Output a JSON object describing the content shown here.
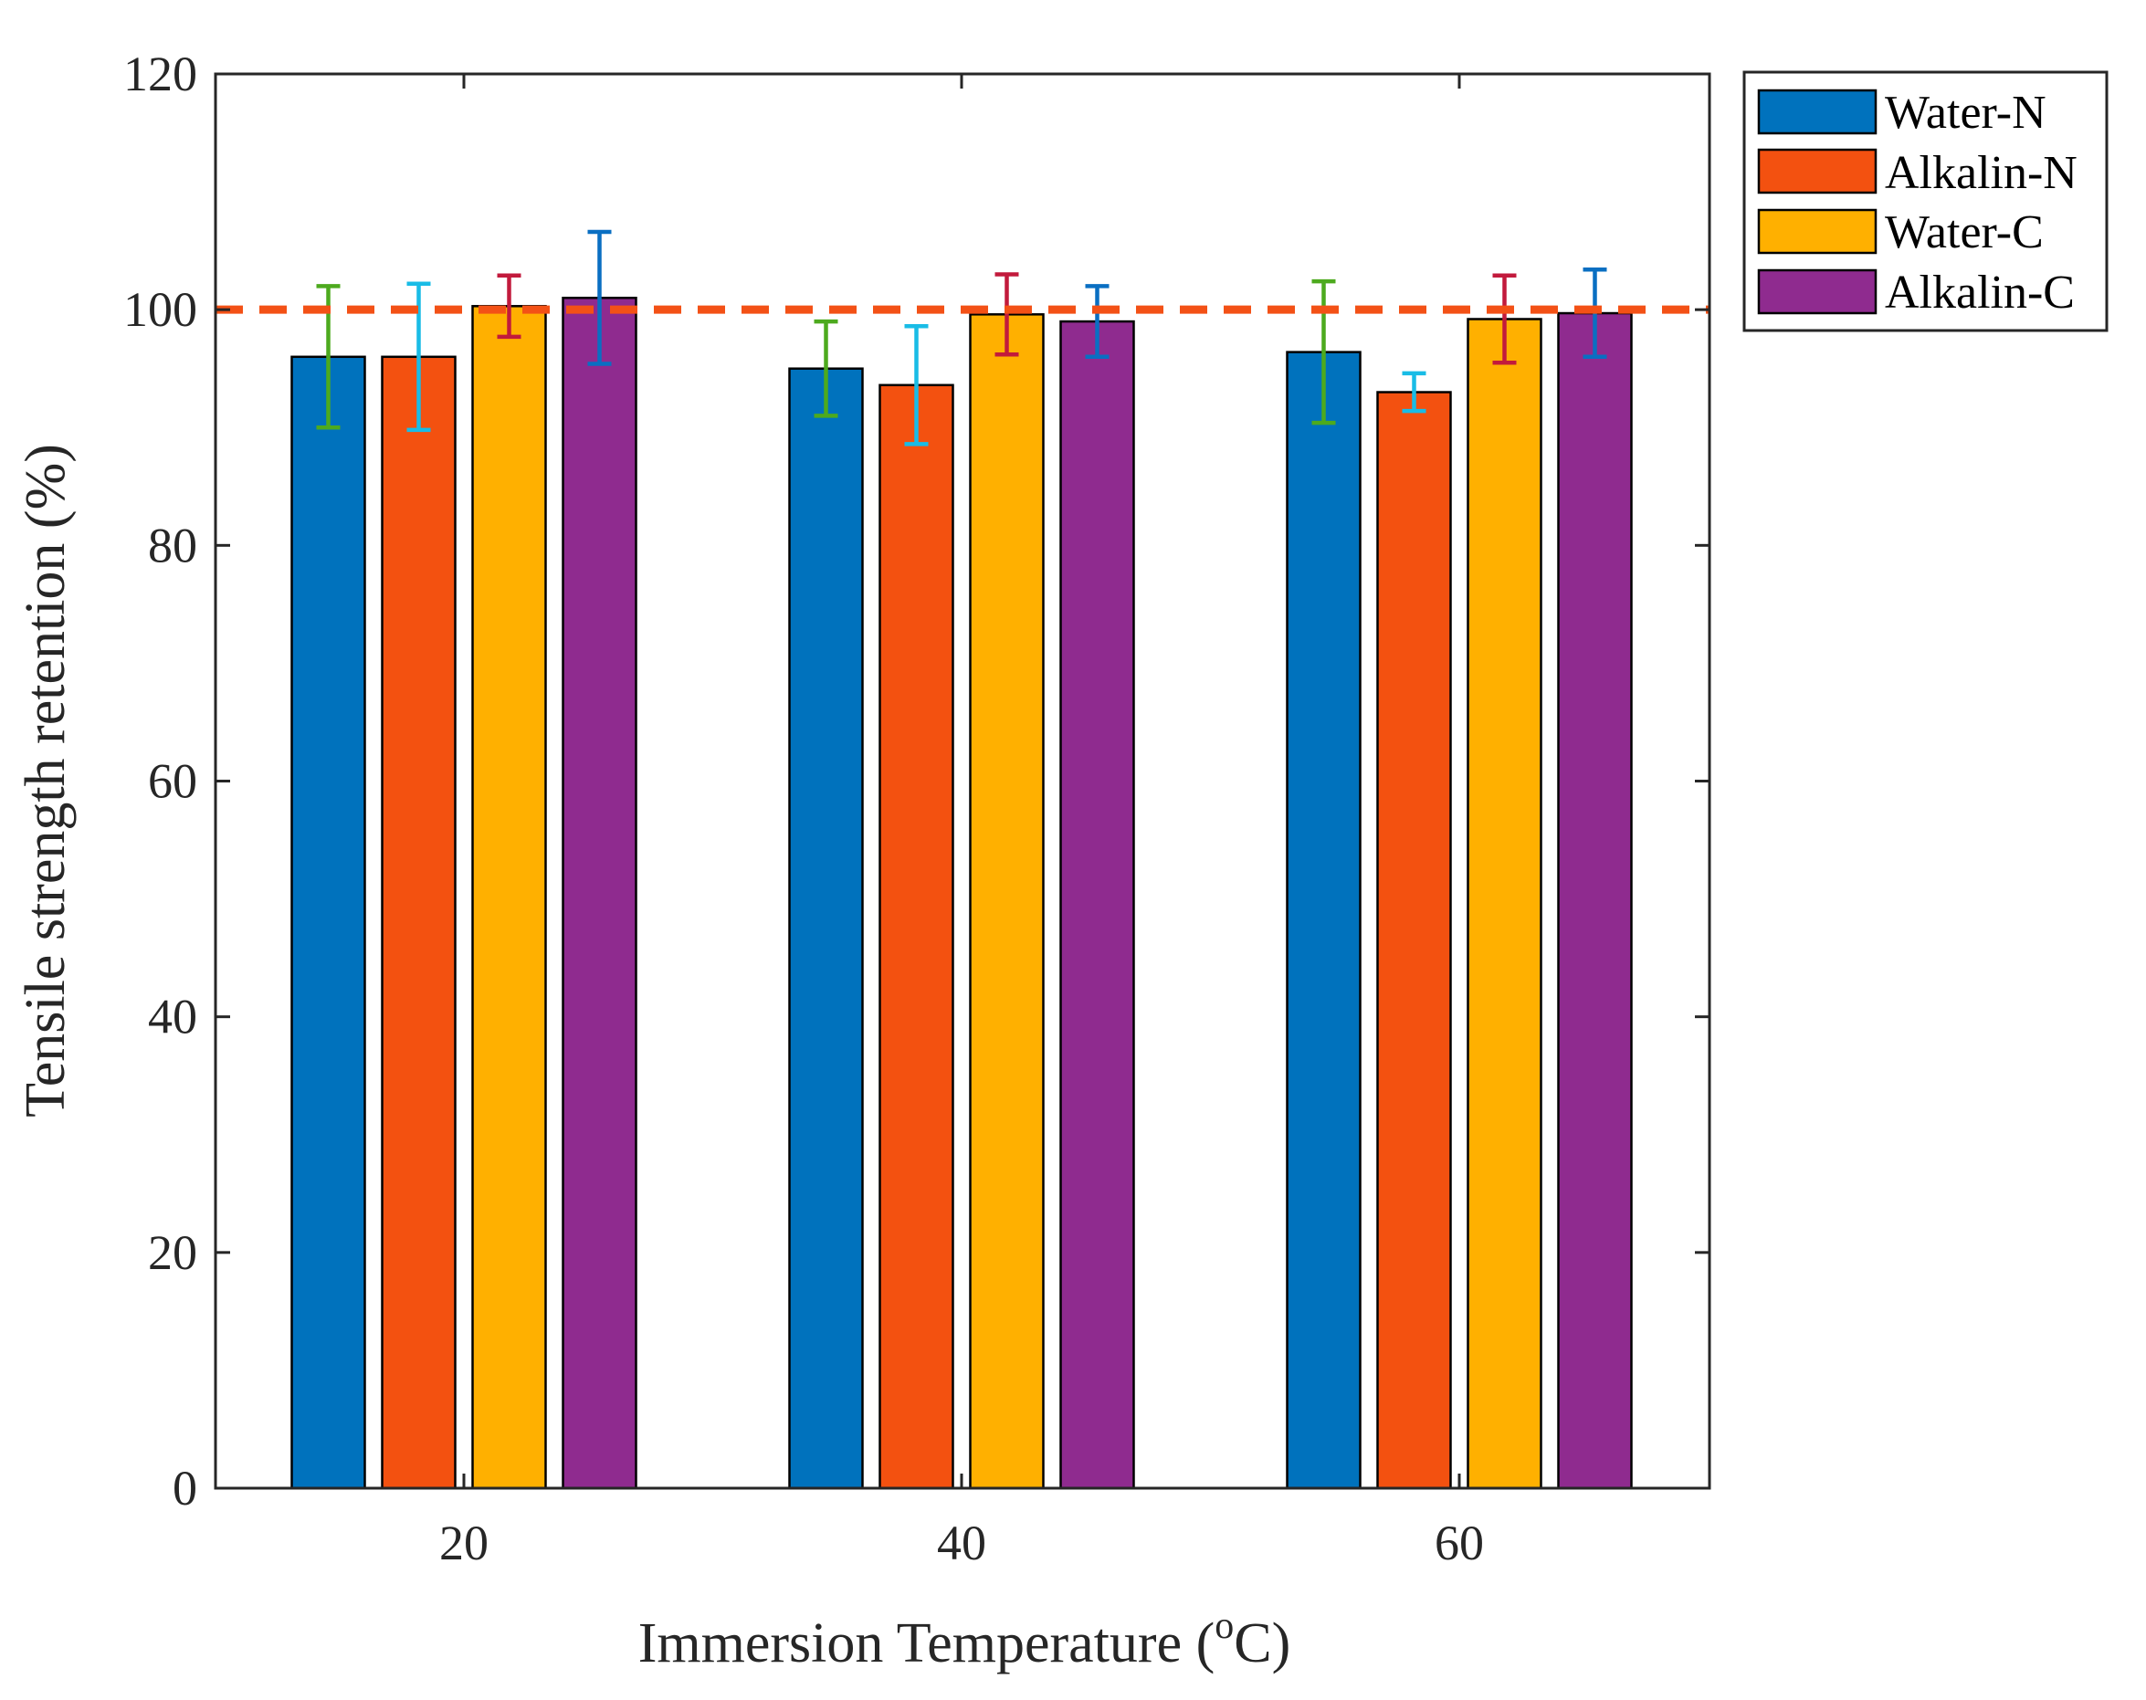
{
  "chart_data": {
    "type": "bar",
    "title": "",
    "xlabel_main": "Immersion Temperature (",
    "xlabel_superscript": "o",
    "xlabel_tail": "C)",
    "ylabel": "Tensile strength retention (%)",
    "categories": [
      "20",
      "40",
      "60"
    ],
    "ylim": [
      0,
      120
    ],
    "yticks": [
      "0",
      "20",
      "40",
      "60",
      "80",
      "100",
      "120"
    ],
    "reference_line": {
      "value": 100,
      "color": "#F35116",
      "style": "dashed"
    },
    "legend_position": "outside-top-right",
    "series": [
      {
        "name": "Water-N",
        "color": "#0072BD",
        "error_color": "#4DAA1E",
        "values": [
          96.0,
          95.0,
          96.4
        ],
        "errors": [
          6.0,
          4.0,
          6.0
        ]
      },
      {
        "name": "Alkalin-N",
        "color": "#F35110",
        "error_color": "#19BCE6",
        "values": [
          96.0,
          93.6,
          93.0
        ],
        "errors": [
          6.2,
          5.0,
          1.6
        ]
      },
      {
        "name": "Water-C",
        "color": "#FFB000",
        "error_color": "#C21A3C",
        "values": [
          100.3,
          99.6,
          99.2
        ],
        "errors": [
          2.6,
          3.4,
          3.7
        ]
      },
      {
        "name": "Alkalin-C",
        "color": "#8F2B8F",
        "error_color": "#0A6FC2",
        "values": [
          101.0,
          99.0,
          99.7
        ],
        "errors": [
          5.6,
          3.0,
          3.7
        ]
      }
    ]
  }
}
